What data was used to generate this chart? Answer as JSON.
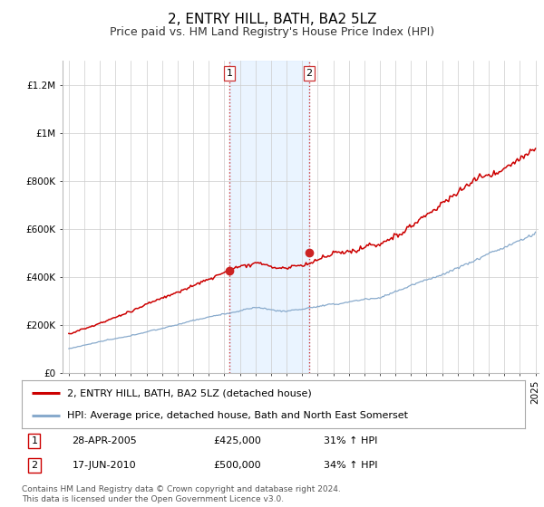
{
  "title": "2, ENTRY HILL, BATH, BA2 5LZ",
  "subtitle": "Price paid vs. HM Land Registry's House Price Index (HPI)",
  "ylim": [
    0,
    1300000
  ],
  "yticks": [
    0,
    200000,
    400000,
    600000,
    800000,
    1000000,
    1200000
  ],
  "ytick_labels": [
    "£0",
    "£200K",
    "£400K",
    "£600K",
    "£800K",
    "£1M",
    "£1.2M"
  ],
  "red_line_color": "#cc0000",
  "blue_line_color": "#88aacc",
  "shading_color": "#ddeeff",
  "t1_year_float": 2005.33,
  "t2_year_float": 2010.46,
  "t1_price": 425000,
  "t2_price": 500000,
  "legend1": "2, ENTRY HILL, BATH, BA2 5LZ (detached house)",
  "legend2": "HPI: Average price, detached house, Bath and North East Somerset",
  "footnote": "Contains HM Land Registry data © Crown copyright and database right 2024.\nThis data is licensed under the Open Government Licence v3.0.",
  "background_color": "#ffffff",
  "grid_color": "#cccccc",
  "title_fontsize": 11,
  "subtitle_fontsize": 9,
  "tick_fontsize": 7.5,
  "legend_fontsize": 8,
  "table_fontsize": 8,
  "transaction1": {
    "date": "28-APR-2005",
    "price": "£425,000",
    "hpi_pct": "31% ↑ HPI",
    "label": "1"
  },
  "transaction2": {
    "date": "17-JUN-2010",
    "price": "£500,000",
    "hpi_pct": "34% ↑ HPI",
    "label": "2"
  }
}
